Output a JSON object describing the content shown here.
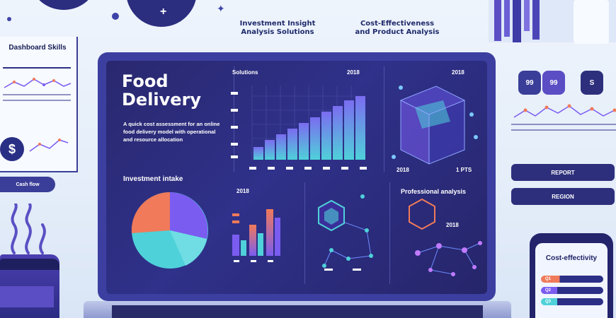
{
  "headlines": {
    "center": "Investment Insight\nAnalysis Solutions",
    "right": "Cost-Effectiveness\nand Product Analysis"
  },
  "left_panel": {
    "title": "Dashboard Skills",
    "coin_symbol": "$",
    "pill_label": "Cash flow"
  },
  "screen": {
    "title_line1": "Food",
    "title_line2": "Delivery",
    "description": "A quick cost assessment for an online food delivery model with operational and resource allocation",
    "panel_top_label": "Solutions",
    "bar_chart_top_label": "2018",
    "cube_top_label": "2018",
    "cube_bottom_left": "2018",
    "cube_bottom_right": "1 PTS",
    "section_title": "Investment intake",
    "mini_bar_label": "2018",
    "network_title": "Professional analysis",
    "network_tick": "2018"
  },
  "right_panel": {
    "bubble_1": "99",
    "bubble_2": "99",
    "bubble_3": "S",
    "button_1": "REPORT",
    "button_2": "REGION"
  },
  "phone": {
    "title": "Cost-effectivity",
    "bars": [
      "Q1",
      "Q2",
      "Q3"
    ]
  },
  "colors": {
    "accent_purple": "#7b5cf0",
    "accent_teal": "#4fd1d9",
    "accent_orange": "#f07a5a",
    "screen_bg": "#29286f"
  }
}
